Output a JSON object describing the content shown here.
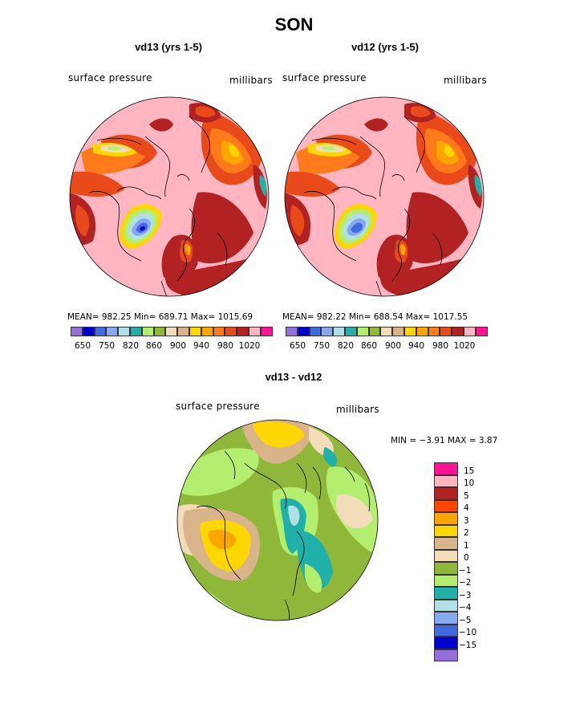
{
  "figure": {
    "title": "SON",
    "colors": {
      "purple": "#9370DB",
      "navy": "#0000CD",
      "blue": "#4169E1",
      "lightblue": "#87A8F0",
      "paleblue": "#B0E0E6",
      "teal": "#20B2AA",
      "lime": "#B4EE6E",
      "olive": "#8FB83A",
      "tan": "#D9B48A",
      "cream": "#F2DDB8",
      "gold": "#FFD700",
      "orange": "#FFA500",
      "darkorange": "#FF7A1A",
      "red": "#E84A1A",
      "brick": "#B22222",
      "pink": "#FFB6C1",
      "magenta": "#FF1493"
    }
  },
  "panels": [
    {
      "subtitle": "vd13 (yrs 1-5)",
      "variable_label": "surface pressure",
      "units_label": "millibars",
      "stats": "MEAN= 982.25   Min= 689.71   Max= 1015.69",
      "colorbar_ticks": [
        "650",
        "750",
        "820",
        "860",
        "900",
        "940",
        "980",
        "1020"
      ]
    },
    {
      "subtitle": "vd12 (yrs 1-5)",
      "variable_label": "surface pressure",
      "units_label": "millibars",
      "stats": "MEAN= 982.22   Min= 688.54   Max= 1017.55",
      "colorbar_ticks": [
        "650",
        "750",
        "820",
        "860",
        "900",
        "940",
        "980",
        "1020"
      ]
    }
  ],
  "diff": {
    "subtitle": "vd13 - vd12",
    "variable_label": "surface pressure",
    "units_label": "millibars",
    "min_max": "MIN =   −3.91  MAX =    3.87",
    "legend_labels": [
      "15",
      "10",
      "5",
      "4",
      "3",
      "2",
      "1",
      "0",
      "−1",
      "−2",
      "−3",
      "−4",
      "−5",
      "−10",
      "−15"
    ]
  }
}
